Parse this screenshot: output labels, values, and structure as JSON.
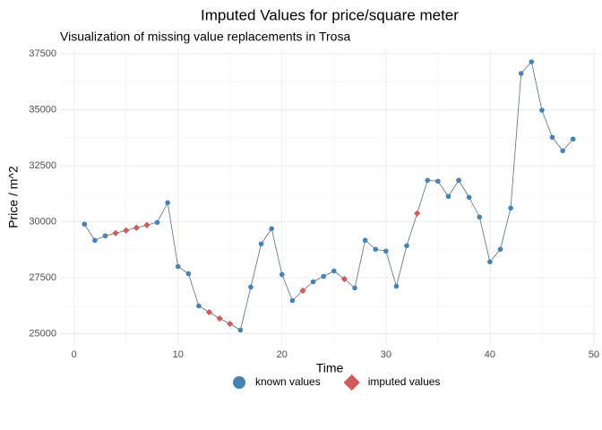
{
  "chart_data": {
    "type": "line",
    "title": "Imputed Values for price/square meter",
    "subtitle": "Visualization of missing value replacements in Trosa",
    "x_label": "Time",
    "y_label": "Price / m^2",
    "x": [
      1,
      2,
      3,
      4,
      5,
      6,
      7,
      8,
      9,
      10,
      11,
      12,
      13,
      14,
      15,
      16,
      17,
      18,
      19,
      20,
      21,
      22,
      23,
      24,
      25,
      26,
      27,
      28,
      29,
      30,
      31,
      32,
      33,
      34,
      35,
      36,
      37,
      38,
      39,
      40,
      41,
      42,
      43,
      44,
      45,
      46,
      47,
      48
    ],
    "series": [
      {
        "name": "known values",
        "color": "#4682b4",
        "marker": "circle",
        "values": [
          29890,
          29170,
          29370,
          null,
          null,
          null,
          null,
          29970,
          30850,
          28000,
          27680,
          26240,
          null,
          null,
          null,
          25160,
          27080,
          29010,
          29690,
          27640,
          26480,
          null,
          27320,
          27560,
          27800,
          null,
          27040,
          29170,
          28770,
          28690,
          27120,
          28930,
          null,
          31850,
          31810,
          31130,
          31850,
          31090,
          30210,
          28210,
          28770,
          30610,
          36620,
          37140,
          34980,
          33770,
          33170,
          33690
        ]
      },
      {
        "name": "imputed values",
        "color": "#cd5c5c",
        "marker": "diamond",
        "values": [
          null,
          null,
          null,
          29490,
          29610,
          29730,
          29850,
          null,
          null,
          null,
          null,
          null,
          25960,
          25680,
          25440,
          null,
          null,
          null,
          null,
          null,
          null,
          26920,
          null,
          null,
          null,
          27440,
          null,
          null,
          null,
          null,
          null,
          null,
          30370,
          null,
          null,
          null,
          null,
          null,
          null,
          null,
          null,
          null,
          null,
          null,
          null,
          null,
          null,
          null
        ]
      }
    ],
    "line_color": "#5a6e7f",
    "xlim": [
      -1.35,
      50.35
    ],
    "ylim": [
      24500,
      37700
    ],
    "xticks": [
      0,
      10,
      20,
      30,
      40,
      50
    ],
    "yticks": [
      25000,
      27500,
      30000,
      32500,
      35000,
      37500
    ],
    "grid": true,
    "legend_position": "bottom"
  }
}
